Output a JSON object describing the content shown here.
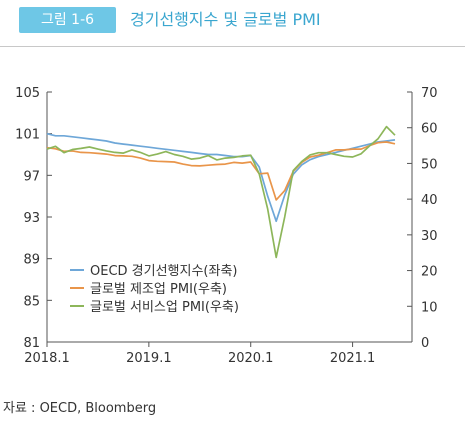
{
  "header": {
    "figure_label": "그림 1-6",
    "title": "경기선행지수 및 글로벌 PMI"
  },
  "source": "자료 : OECD, Bloomberg",
  "colors": {
    "oecd": "#6ea7d8",
    "mfg": "#e9954a",
    "svc": "#8db65a",
    "badge": "#6ec7e6",
    "title": "#3aa6cf"
  },
  "chart_data": {
    "type": "line",
    "x_tick_labels": [
      "2018.1",
      "2019.1",
      "2020.1",
      "2021.1"
    ],
    "left_axis": {
      "ylim": [
        81,
        105
      ],
      "ticks": [
        "81",
        "85",
        "89",
        "93",
        "97",
        "101",
        "105"
      ]
    },
    "right_axis": {
      "ylim": [
        0,
        70
      ],
      "ticks": [
        "0",
        "10",
        "20",
        "30",
        "40",
        "50",
        "60",
        "70"
      ]
    },
    "grid": false,
    "legend_position": "bottom-left",
    "series": [
      {
        "name": "OECD 경기선행지수(좌축)",
        "axis": "left",
        "x": [
          "2018.01",
          "2018.02",
          "2018.03",
          "2018.04",
          "2018.05",
          "2018.06",
          "2018.07",
          "2018.08",
          "2018.09",
          "2018.10",
          "2018.11",
          "2018.12",
          "2019.01",
          "2019.02",
          "2019.03",
          "2019.04",
          "2019.05",
          "2019.06",
          "2019.07",
          "2019.08",
          "2019.09",
          "2019.10",
          "2019.11",
          "2019.12",
          "2020.01",
          "2020.02",
          "2020.03",
          "2020.04",
          "2020.05",
          "2020.06",
          "2020.07",
          "2020.08",
          "2020.09",
          "2020.10",
          "2020.11",
          "2020.12",
          "2021.01",
          "2021.02",
          "2021.03",
          "2021.04",
          "2021.05",
          "2021.06"
        ],
        "values": [
          101.0,
          100.8,
          100.8,
          100.7,
          100.6,
          100.5,
          100.4,
          100.3,
          100.1,
          100.0,
          99.9,
          99.8,
          99.7,
          99.6,
          99.5,
          99.4,
          99.3,
          99.2,
          99.1,
          99.0,
          99.0,
          98.9,
          98.8,
          98.8,
          98.9,
          97.8,
          95.0,
          92.6,
          95.1,
          97.1,
          98.0,
          98.5,
          98.8,
          99.0,
          99.2,
          99.4,
          99.6,
          99.8,
          100.0,
          100.2,
          100.3,
          100.4
        ]
      },
      {
        "name": "글로벌 제조업 PMI(우축)",
        "axis": "right",
        "x": [
          "2018.01",
          "2018.02",
          "2018.03",
          "2018.04",
          "2018.05",
          "2018.06",
          "2018.07",
          "2018.08",
          "2018.09",
          "2018.10",
          "2018.11",
          "2018.12",
          "2019.01",
          "2019.02",
          "2019.03",
          "2019.04",
          "2019.05",
          "2019.06",
          "2019.07",
          "2019.08",
          "2019.09",
          "2019.10",
          "2019.11",
          "2019.12",
          "2020.01",
          "2020.02",
          "2020.03",
          "2020.04",
          "2020.05",
          "2020.06",
          "2020.07",
          "2020.08",
          "2020.09",
          "2020.10",
          "2020.11",
          "2020.12",
          "2021.01",
          "2021.02",
          "2021.03",
          "2021.04",
          "2021.05",
          "2021.06"
        ],
        "values": [
          54.4,
          54.1,
          53.4,
          53.5,
          53.1,
          53.0,
          52.8,
          52.6,
          52.2,
          52.1,
          52.0,
          51.5,
          50.8,
          50.6,
          50.5,
          50.4,
          49.8,
          49.4,
          49.3,
          49.5,
          49.7,
          49.8,
          50.3,
          50.1,
          50.4,
          47.1,
          47.3,
          39.8,
          42.4,
          47.8,
          50.3,
          51.8,
          52.3,
          53.0,
          53.8,
          53.8,
          54.0,
          54.0,
          55.0,
          55.8,
          56.0,
          55.5
        ]
      },
      {
        "name": "글로벌 서비스업 PMI(우축)",
        "axis": "right",
        "x": [
          "2018.01",
          "2018.02",
          "2018.03",
          "2018.04",
          "2018.05",
          "2018.06",
          "2018.07",
          "2018.08",
          "2018.09",
          "2018.10",
          "2018.11",
          "2018.12",
          "2019.01",
          "2019.02",
          "2019.03",
          "2019.04",
          "2019.05",
          "2019.06",
          "2019.07",
          "2019.08",
          "2019.09",
          "2019.10",
          "2019.11",
          "2019.12",
          "2020.01",
          "2020.02",
          "2020.03",
          "2020.04",
          "2020.05",
          "2020.06",
          "2020.07",
          "2020.08",
          "2020.09",
          "2020.10",
          "2020.11",
          "2020.12",
          "2021.01",
          "2021.02",
          "2021.03",
          "2021.04",
          "2021.05",
          "2021.06"
        ],
        "values": [
          54.0,
          54.8,
          53.0,
          53.9,
          54.2,
          54.6,
          54.0,
          53.5,
          53.1,
          52.9,
          53.8,
          53.1,
          52.1,
          52.6,
          53.3,
          52.5,
          52.0,
          51.2,
          51.5,
          52.2,
          51.0,
          51.5,
          51.7,
          52.1,
          52.3,
          47.1,
          37.2,
          23.7,
          35.0,
          48.0,
          50.5,
          52.4,
          53.0,
          53.0,
          52.5,
          52.0,
          51.8,
          52.7,
          54.9,
          56.9,
          60.3,
          57.9
        ]
      }
    ]
  }
}
